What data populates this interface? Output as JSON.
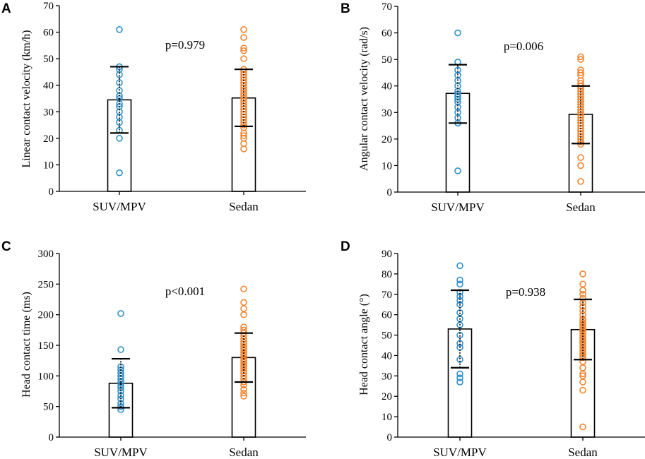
{
  "colors": {
    "suv": "#2E8FCC",
    "sedan": "#F5852F",
    "axis": "#000000"
  },
  "chart_data": [
    {
      "panel": "A",
      "type": "bar",
      "categories": [
        "SUV/MPV",
        "Sedan"
      ],
      "ylabel": "Linear contact velocity (km/h)",
      "ylim": [
        0,
        70
      ],
      "yticks": [
        "0",
        "10",
        "20",
        "30",
        "40",
        "50",
        "60",
        "70"
      ],
      "annotation": "p=0.979",
      "series": [
        {
          "name": "SUV/MPV",
          "mean": 34.5,
          "sd_low": 22,
          "sd_high": 47,
          "points": [
            7,
            20,
            23,
            26,
            28,
            30,
            32,
            33,
            35,
            36,
            38,
            41,
            44,
            46,
            47,
            61
          ]
        },
        {
          "name": "Sedan",
          "mean": 35.2,
          "sd_low": 24.5,
          "sd_high": 46,
          "points": [
            16,
            18,
            20,
            21,
            22,
            24,
            25,
            26,
            27,
            28,
            29,
            30,
            31,
            32,
            33,
            34,
            35,
            36,
            37,
            38,
            39,
            40,
            41,
            42,
            43,
            44,
            45,
            46,
            50,
            53,
            54,
            58,
            61
          ]
        }
      ]
    },
    {
      "panel": "B",
      "type": "bar",
      "categories": [
        "SUV/MPV",
        "Sedan"
      ],
      "ylabel": "Angular contact velocity (rad/s)",
      "ylim": [
        0,
        70
      ],
      "yticks": [
        "0",
        "10",
        "20",
        "30",
        "40",
        "50",
        "60",
        "70"
      ],
      "annotation": "p=0.006",
      "series": [
        {
          "name": "SUV/MPV",
          "mean": 37.2,
          "sd_low": 26,
          "sd_high": 48,
          "points": [
            8,
            26,
            28,
            30,
            32,
            34,
            35,
            36,
            37,
            38,
            40,
            42,
            44,
            46,
            49,
            60
          ]
        },
        {
          "name": "Sedan",
          "mean": 29.3,
          "sd_low": 18.3,
          "sd_high": 40,
          "points": [
            4,
            10,
            13,
            18,
            19,
            20,
            21,
            22,
            23,
            24,
            25,
            26,
            27,
            28,
            29,
            30,
            31,
            32,
            33,
            34,
            35,
            36,
            37,
            38,
            39,
            40,
            41,
            42,
            44,
            45,
            46,
            50,
            51
          ]
        }
      ]
    },
    {
      "panel": "C",
      "type": "bar",
      "categories": [
        "SUV/MPV",
        "Sedan"
      ],
      "ylabel": "Head contact time (ms)",
      "ylim": [
        0,
        300
      ],
      "yticks": [
        "0",
        "50",
        "100",
        "150",
        "200",
        "250",
        "300"
      ],
      "annotation": "p<0.001",
      "series": [
        {
          "name": "SUV/MPV",
          "mean": 88,
          "sd_low": 48,
          "sd_high": 128,
          "points": [
            45,
            50,
            55,
            62,
            68,
            75,
            80,
            85,
            90,
            95,
            100,
            105,
            110,
            115,
            143,
            202
          ]
        },
        {
          "name": "Sedan",
          "mean": 130,
          "sd_low": 90,
          "sd_high": 170,
          "points": [
            67,
            72,
            78,
            85,
            90,
            95,
            100,
            105,
            108,
            112,
            115,
            118,
            122,
            125,
            128,
            132,
            135,
            138,
            142,
            145,
            148,
            152,
            155,
            160,
            165,
            170,
            175,
            180,
            200,
            210,
            220,
            242
          ]
        }
      ]
    },
    {
      "panel": "D",
      "type": "bar",
      "categories": [
        "SUV/MPV",
        "Sedan"
      ],
      "ylabel": "Head contact angle (°)",
      "ylim": [
        0,
        90
      ],
      "yticks": [
        "0",
        "10",
        "20",
        "30",
        "40",
        "50",
        "60",
        "70",
        "80",
        "90"
      ],
      "annotation": "p=0.938",
      "series": [
        {
          "name": "SUV/MPV",
          "mean": 53,
          "sd_low": 34,
          "sd_high": 72,
          "points": [
            27,
            29,
            31,
            38,
            44,
            46,
            50,
            55,
            58,
            61,
            65,
            67,
            69,
            71,
            75,
            77,
            84
          ]
        },
        {
          "name": "Sedan",
          "mean": 52.7,
          "sd_low": 38,
          "sd_high": 67.5,
          "points": [
            5,
            23,
            27,
            30,
            31,
            34,
            37,
            39,
            40,
            41,
            42,
            43,
            44,
            45,
            46,
            47,
            48,
            49,
            50,
            51,
            52,
            53,
            54,
            55,
            56,
            57,
            58,
            60,
            62,
            64,
            66,
            68,
            70,
            72,
            75,
            80
          ]
        }
      ]
    }
  ]
}
